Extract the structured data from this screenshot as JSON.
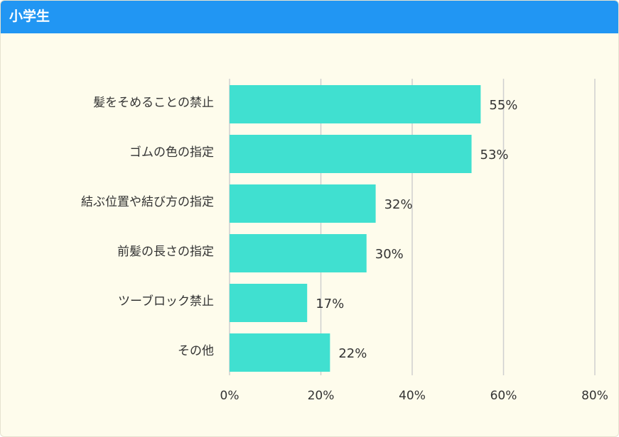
{
  "header": {
    "title": "小学生",
    "color": "#2196f3"
  },
  "chart_data": {
    "type": "bar",
    "orientation": "horizontal",
    "categories": [
      "髪をそめることの禁止",
      "ゴムの色の指定",
      "結ぶ位置や結び方の指定",
      "前髪の長さの指定",
      "ツーブロック禁止",
      "その他"
    ],
    "values": [
      55,
      53,
      32,
      30,
      17,
      22
    ],
    "value_labels": [
      "55%",
      "53%",
      "32%",
      "30%",
      "17%",
      "22%"
    ],
    "xlim": [
      0,
      80
    ],
    "ticks": [
      0,
      20,
      40,
      60,
      80
    ],
    "tick_labels": [
      "0%",
      "20%",
      "40%",
      "60%",
      "80%"
    ],
    "grid": true,
    "bar_color": "#40e0d0",
    "grid_color": "#cfcfcf",
    "background": "#fefcec"
  }
}
